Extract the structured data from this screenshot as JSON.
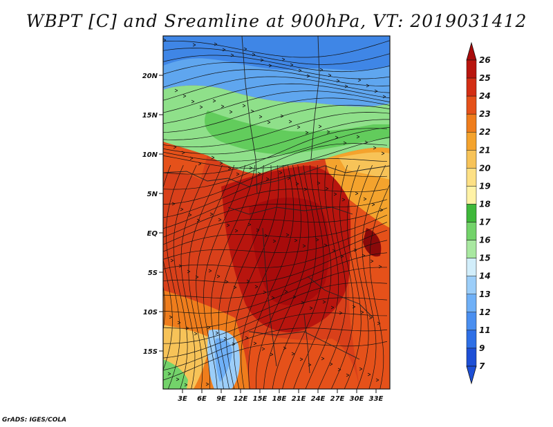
{
  "title": "WBPT [C] and Sreamline at 900hPa, VT: 2019031412",
  "credit": "GrADS: IGES/COLA",
  "lat_labels": [
    "20N",
    "15N",
    "10N",
    "5N",
    "EQ",
    "5S",
    "10S",
    "15S"
  ],
  "lon_labels": [
    "3E",
    "6E",
    "9E",
    "12E",
    "15E",
    "18E",
    "21E",
    "24E",
    "27E",
    "30E",
    "33E"
  ],
  "colorbar": {
    "levels": [
      "7",
      "9",
      "11",
      "12",
      "13",
      "14",
      "15",
      "16",
      "17",
      "18",
      "19",
      "20",
      "21",
      "22",
      "23",
      "24",
      "25",
      "26"
    ],
    "colors": [
      "#1d4fd6",
      "#2e6fe6",
      "#4a8ff0",
      "#6fb0f7",
      "#9ccef9",
      "#d2eefb",
      "#a9e8a1",
      "#73d36a",
      "#3fb83a",
      "#fff2a6",
      "#fde085",
      "#f7c358",
      "#f4a32d",
      "#ef7d1c",
      "#e5511a",
      "#d32e14",
      "#b8150e"
    ],
    "min_arrow_color": "#1d4fd6",
    "max_arrow_color": "#a80b0b"
  }
}
